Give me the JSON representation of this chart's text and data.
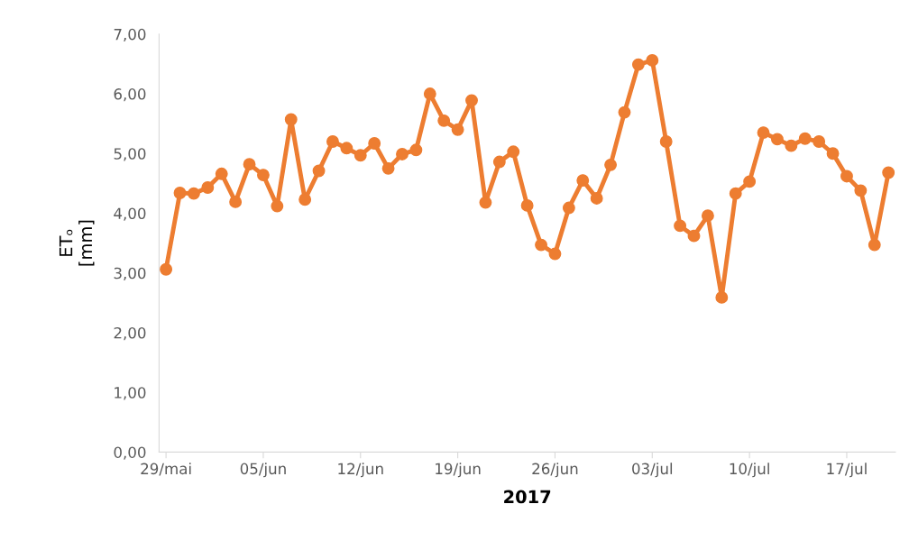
{
  "chart_data": {
    "type": "line",
    "xlabel": "2017",
    "ylabel": "ETₒ\n[mm]",
    "x": [
      "2017-05-29",
      "2017-05-30",
      "2017-05-31",
      "2017-06-01",
      "2017-06-02",
      "2017-06-03",
      "2017-06-04",
      "2017-06-05",
      "2017-06-06",
      "2017-06-07",
      "2017-06-08",
      "2017-06-09",
      "2017-06-10",
      "2017-06-11",
      "2017-06-12",
      "2017-06-13",
      "2017-06-14",
      "2017-06-15",
      "2017-06-16",
      "2017-06-17",
      "2017-06-18",
      "2017-06-19",
      "2017-06-20",
      "2017-06-21",
      "2017-06-22",
      "2017-06-23",
      "2017-06-24",
      "2017-06-25",
      "2017-06-26",
      "2017-06-27",
      "2017-06-28",
      "2017-06-29",
      "2017-06-30",
      "2017-07-01",
      "2017-07-02",
      "2017-07-03",
      "2017-07-04",
      "2017-07-05",
      "2017-07-06",
      "2017-07-07",
      "2017-07-08",
      "2017-07-09",
      "2017-07-10",
      "2017-07-11",
      "2017-07-12",
      "2017-07-13",
      "2017-07-14",
      "2017-07-15",
      "2017-07-16",
      "2017-07-17",
      "2017-07-18",
      "2017-07-19",
      "2017-07-20"
    ],
    "series": [
      {
        "color": "#ed7d31",
        "values": [
          3.06,
          4.34,
          4.33,
          4.43,
          4.66,
          4.19,
          4.82,
          4.64,
          4.12,
          5.57,
          4.23,
          4.71,
          5.2,
          5.09,
          4.97,
          5.17,
          4.75,
          4.99,
          5.06,
          6.0,
          5.55,
          5.4,
          5.89,
          4.18,
          4.86,
          5.03,
          4.13,
          3.47,
          3.32,
          4.09,
          4.55,
          4.25,
          4.81,
          5.69,
          6.49,
          6.56,
          5.2,
          3.79,
          3.62,
          3.96,
          2.59,
          4.33,
          4.53,
          5.35,
          5.24,
          5.13,
          5.25,
          5.2,
          5.0,
          4.62,
          4.38,
          3.47,
          4.68
        ]
      }
    ],
    "marker": "circle",
    "line_style": "solid",
    "grid": false,
    "legend": false,
    "xlim": [
      "2017-05-28T12:00",
      "2017-07-20T12:00"
    ],
    "xticks": [
      {
        "value": "2017-05-29",
        "label": "29/mai"
      },
      {
        "value": "2017-06-05",
        "label": "05/jun"
      },
      {
        "value": "2017-06-12",
        "label": "12/jun"
      },
      {
        "value": "2017-06-19",
        "label": "19/jun"
      },
      {
        "value": "2017-06-26",
        "label": "26/jun"
      },
      {
        "value": "2017-07-03",
        "label": "03/jul"
      },
      {
        "value": "2017-07-10",
        "label": "10/jul"
      },
      {
        "value": "2017-07-17",
        "label": "17/jul"
      }
    ],
    "ylim": [
      0,
      7
    ],
    "yticks": [
      {
        "value": 0,
        "label": "0,00"
      },
      {
        "value": 1,
        "label": "1,00"
      },
      {
        "value": 2,
        "label": "2,00"
      },
      {
        "value": 3,
        "label": "3,00"
      },
      {
        "value": 4,
        "label": "4,00"
      },
      {
        "value": 5,
        "label": "5,00"
      },
      {
        "value": 6,
        "label": "6,00"
      },
      {
        "value": 7,
        "label": "7,00"
      }
    ]
  }
}
